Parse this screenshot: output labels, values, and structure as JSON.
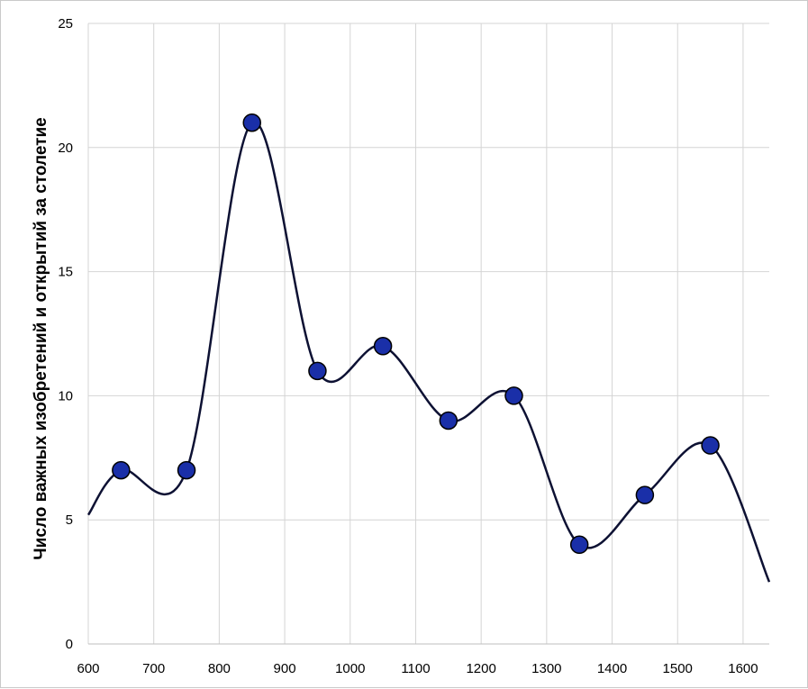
{
  "chart_data": {
    "type": "scatter",
    "title": "",
    "xlabel": "",
    "ylabel": "Число важных изобретений и открытий за  столетие",
    "xlim": [
      600,
      1640
    ],
    "ylim": [
      0,
      25
    ],
    "x_ticks": [
      "600",
      "700",
      "800",
      "900",
      "1000",
      "1100",
      "1200",
      "1300",
      "1400",
      "1500",
      "1600"
    ],
    "y_ticks": [
      "0",
      "5",
      "10",
      "15",
      "20",
      "25"
    ],
    "grid": true,
    "smooth_line": true,
    "series": [
      {
        "x": [
          650,
          750,
          850,
          950,
          1050,
          1150,
          1250,
          1350,
          1450,
          1550
        ],
        "y": [
          7,
          7,
          21,
          11,
          12,
          9,
          10,
          4,
          6,
          8
        ]
      }
    ],
    "curve_extends_to": {
      "left": [
        600,
        5.2
      ],
      "right": [
        1640,
        2.5
      ]
    },
    "colors": {
      "marker_fill": "#1a2fa8",
      "marker_stroke": "#000000",
      "line": "#0d1133",
      "grid": "#d4d4d4"
    }
  }
}
